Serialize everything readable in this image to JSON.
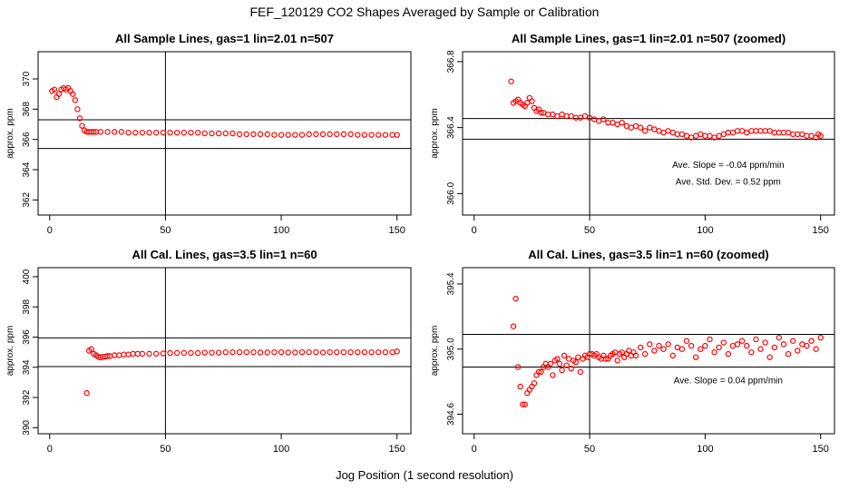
{
  "suptitle": "FEF_120129  CO2 Shapes Averaged by Sample or Calibration",
  "common_xlabel": "Jog Position (1 second resolution)",
  "chart_data": [
    {
      "type": "scatter",
      "title": "All Sample Lines, gas=1 lin=2.01 n=507",
      "ylabel": "approx. ppm",
      "xlim": [
        -5,
        156
      ],
      "ylim": [
        361,
        371.8
      ],
      "xticks": [
        0,
        50,
        100,
        150
      ],
      "yticks": [
        362,
        364,
        366,
        368,
        370
      ],
      "vline": 50,
      "hlines": [
        367.3,
        365.4
      ],
      "point_color": "#ff0000",
      "annotations": [],
      "series": [
        {
          "x": [
            1,
            2,
            3,
            4,
            5,
            6,
            7,
            8,
            9,
            10,
            11,
            12,
            13,
            14,
            15,
            16,
            17,
            18,
            19,
            20,
            22,
            25,
            28,
            31,
            34,
            37,
            40,
            43,
            46,
            49,
            52,
            55,
            58,
            61,
            64,
            67,
            70,
            73,
            76,
            79,
            82,
            85,
            88,
            91,
            94,
            97,
            100,
            103,
            106,
            109,
            112,
            115,
            118,
            121,
            124,
            127,
            130,
            133,
            136,
            139,
            142,
            145,
            148,
            150
          ],
          "y": [
            369.2,
            369.3,
            368.8,
            369.0,
            369.3,
            369.4,
            369.3,
            369.4,
            369.2,
            369.0,
            368.6,
            368.0,
            367.4,
            366.9,
            366.6,
            366.5,
            366.5,
            366.5,
            366.5,
            366.5,
            366.5,
            366.5,
            366.5,
            366.5,
            366.45,
            366.45,
            366.45,
            366.45,
            366.45,
            366.45,
            366.45,
            366.45,
            366.45,
            366.45,
            366.45,
            366.4,
            366.4,
            366.4,
            366.4,
            366.4,
            366.35,
            366.35,
            366.35,
            366.35,
            366.35,
            366.3,
            366.3,
            366.3,
            366.3,
            366.3,
            366.35,
            366.35,
            366.35,
            366.35,
            366.35,
            366.35,
            366.35,
            366.3,
            366.3,
            366.3,
            366.3,
            366.3,
            366.3,
            366.3
          ]
        }
      ]
    },
    {
      "type": "scatter",
      "title": "All Sample Lines, gas=1 lin=2.01 n=507 (zoomed)",
      "ylabel": "approx. ppm",
      "xlim": [
        -5,
        156
      ],
      "ylim": [
        365.87,
        366.86
      ],
      "xticks": [
        0,
        50,
        100,
        150
      ],
      "yticks": [
        366.0,
        366.4,
        366.8
      ],
      "vline": 50,
      "hlines": [
        366.455,
        366.33
      ],
      "point_color": "#ff0000",
      "annotations": [
        {
          "text": "Ave. Slope =  -0.04  ppm/min",
          "x": 110,
          "y": 366.155
        },
        {
          "text": "Ave. Std. Dev. =  0.52  ppm",
          "x": 110,
          "y": 366.055
        }
      ],
      "series": [
        {
          "x": [
            16,
            17,
            18,
            19,
            20,
            21,
            22,
            23,
            24,
            25,
            26,
            27,
            28,
            29,
            30,
            32,
            34,
            36,
            38,
            40,
            42,
            44,
            46,
            48,
            50,
            52,
            54,
            56,
            58,
            60,
            62,
            64,
            66,
            68,
            70,
            72,
            74,
            76,
            78,
            80,
            82,
            84,
            86,
            88,
            90,
            92,
            94,
            96,
            98,
            100,
            102,
            104,
            106,
            108,
            110,
            112,
            114,
            116,
            118,
            120,
            122,
            124,
            126,
            128,
            130,
            132,
            134,
            136,
            138,
            140,
            142,
            144,
            146,
            148,
            149,
            150
          ],
          "y": [
            366.68,
            366.55,
            366.56,
            366.57,
            366.55,
            366.54,
            366.53,
            366.55,
            366.58,
            366.56,
            366.52,
            366.5,
            366.51,
            366.49,
            366.49,
            366.48,
            366.48,
            366.47,
            366.48,
            366.47,
            366.47,
            366.46,
            366.46,
            366.47,
            366.46,
            366.45,
            366.44,
            366.45,
            366.43,
            366.43,
            366.42,
            366.43,
            366.41,
            366.4,
            366.41,
            366.4,
            366.38,
            366.4,
            366.39,
            366.38,
            366.37,
            366.38,
            366.37,
            366.36,
            366.36,
            366.35,
            366.34,
            366.35,
            366.36,
            366.35,
            366.35,
            366.34,
            366.35,
            366.36,
            366.37,
            366.37,
            366.38,
            366.38,
            366.37,
            366.38,
            366.38,
            366.38,
            366.38,
            366.38,
            366.37,
            366.37,
            366.37,
            366.37,
            366.36,
            366.36,
            366.36,
            366.35,
            366.35,
            366.34,
            366.36,
            366.35
          ]
        }
      ]
    },
    {
      "type": "scatter",
      "title": "All Cal. Lines, gas=3.5 lin=1 n=60",
      "ylabel": "approx. ppm",
      "xlim": [
        -5,
        156
      ],
      "ylim": [
        389.6,
        400.6
      ],
      "xticks": [
        0,
        50,
        100,
        150
      ],
      "yticks": [
        390,
        392,
        394,
        396,
        398,
        400
      ],
      "vline": 50,
      "hlines": [
        395.95,
        394.05
      ],
      "point_color": "#ff0000",
      "annotations": [],
      "series": [
        {
          "x": [
            16,
            17,
            18,
            19,
            20,
            21,
            22,
            23,
            24,
            25,
            26,
            28,
            30,
            32,
            34,
            36,
            38,
            40,
            43,
            46,
            49,
            52,
            55,
            58,
            61,
            64,
            67,
            70,
            73,
            76,
            79,
            82,
            85,
            88,
            91,
            94,
            97,
            100,
            103,
            106,
            109,
            112,
            115,
            118,
            121,
            124,
            127,
            130,
            133,
            136,
            139,
            142,
            145,
            148,
            150
          ],
          "y": [
            392.3,
            395.1,
            395.2,
            394.9,
            394.8,
            394.7,
            394.65,
            394.7,
            394.7,
            394.75,
            394.75,
            394.8,
            394.8,
            394.85,
            394.85,
            394.9,
            394.9,
            394.9,
            394.9,
            394.9,
            394.92,
            394.95,
            394.95,
            394.95,
            394.95,
            394.95,
            394.97,
            394.97,
            394.97,
            395.0,
            395.0,
            395.0,
            395.0,
            395.0,
            394.98,
            394.98,
            395.0,
            395.0,
            394.98,
            394.98,
            395.0,
            395.0,
            395.0,
            394.98,
            395.0,
            395.0,
            395.0,
            395.0,
            395.0,
            395.0,
            395.0,
            395.0,
            395.0,
            395.0,
            395.05
          ]
        }
      ]
    },
    {
      "type": "scatter",
      "title": "All Cal. Lines, gas=3.5 lin=1 n=60 (zoomed)",
      "ylabel": "approx. ppm",
      "xlim": [
        -5,
        156
      ],
      "ylim": [
        394.48,
        395.5
      ],
      "xticks": [
        0,
        50,
        100,
        150
      ],
      "yticks": [
        394.6,
        395.0,
        395.4
      ],
      "vline": 50,
      "hlines": [
        395.09,
        394.89
      ],
      "point_color": "#ff0000",
      "annotations": [
        {
          "text": "Ave. Slope =  0.04  ppm/min",
          "x": 110,
          "y": 394.79
        }
      ],
      "series": [
        {
          "x": [
            17,
            18,
            19,
            20,
            21,
            22,
            23,
            24,
            25,
            26,
            27,
            28,
            29,
            30,
            31,
            32,
            33,
            34,
            35,
            36,
            37,
            38,
            39,
            40,
            41,
            42,
            43,
            44,
            45,
            46,
            47,
            48,
            49,
            50,
            51,
            52,
            53,
            54,
            55,
            56,
            57,
            58,
            59,
            60,
            61,
            62,
            63,
            64,
            65,
            66,
            67,
            68,
            69,
            70,
            72,
            74,
            76,
            78,
            80,
            82,
            84,
            86,
            88,
            90,
            92,
            94,
            96,
            98,
            100,
            102,
            104,
            106,
            108,
            110,
            112,
            114,
            116,
            118,
            120,
            122,
            124,
            126,
            128,
            130,
            132,
            134,
            136,
            138,
            140,
            142,
            144,
            146,
            148,
            150
          ],
          "y": [
            395.14,
            395.31,
            394.89,
            394.77,
            394.66,
            394.66,
            394.73,
            394.75,
            394.77,
            394.79,
            394.84,
            394.86,
            394.86,
            394.89,
            394.91,
            394.89,
            394.91,
            394.84,
            394.93,
            394.94,
            394.91,
            394.87,
            394.96,
            394.9,
            394.94,
            394.88,
            394.93,
            394.92,
            394.95,
            394.86,
            394.94,
            394.96,
            394.95,
            394.97,
            394.97,
            394.96,
            394.97,
            394.95,
            394.94,
            394.96,
            394.94,
            394.94,
            394.96,
            394.97,
            394.98,
            394.93,
            394.97,
            394.98,
            394.95,
            394.97,
            394.99,
            394.96,
            394.98,
            394.96,
            395.01,
            394.97,
            395.03,
            394.99,
            395.02,
            395.0,
            395.03,
            394.96,
            395.01,
            395.0,
            395.05,
            395.02,
            394.95,
            395.0,
            395.02,
            395.06,
            394.98,
            395.01,
            395.04,
            394.97,
            395.02,
            395.03,
            395.05,
            395.02,
            394.98,
            395.06,
            395.0,
            395.04,
            394.95,
            395.01,
            395.07,
            395.03,
            394.97,
            395.05,
            394.99,
            395.03,
            395.02,
            395.05,
            395.0,
            395.07
          ]
        }
      ]
    }
  ]
}
